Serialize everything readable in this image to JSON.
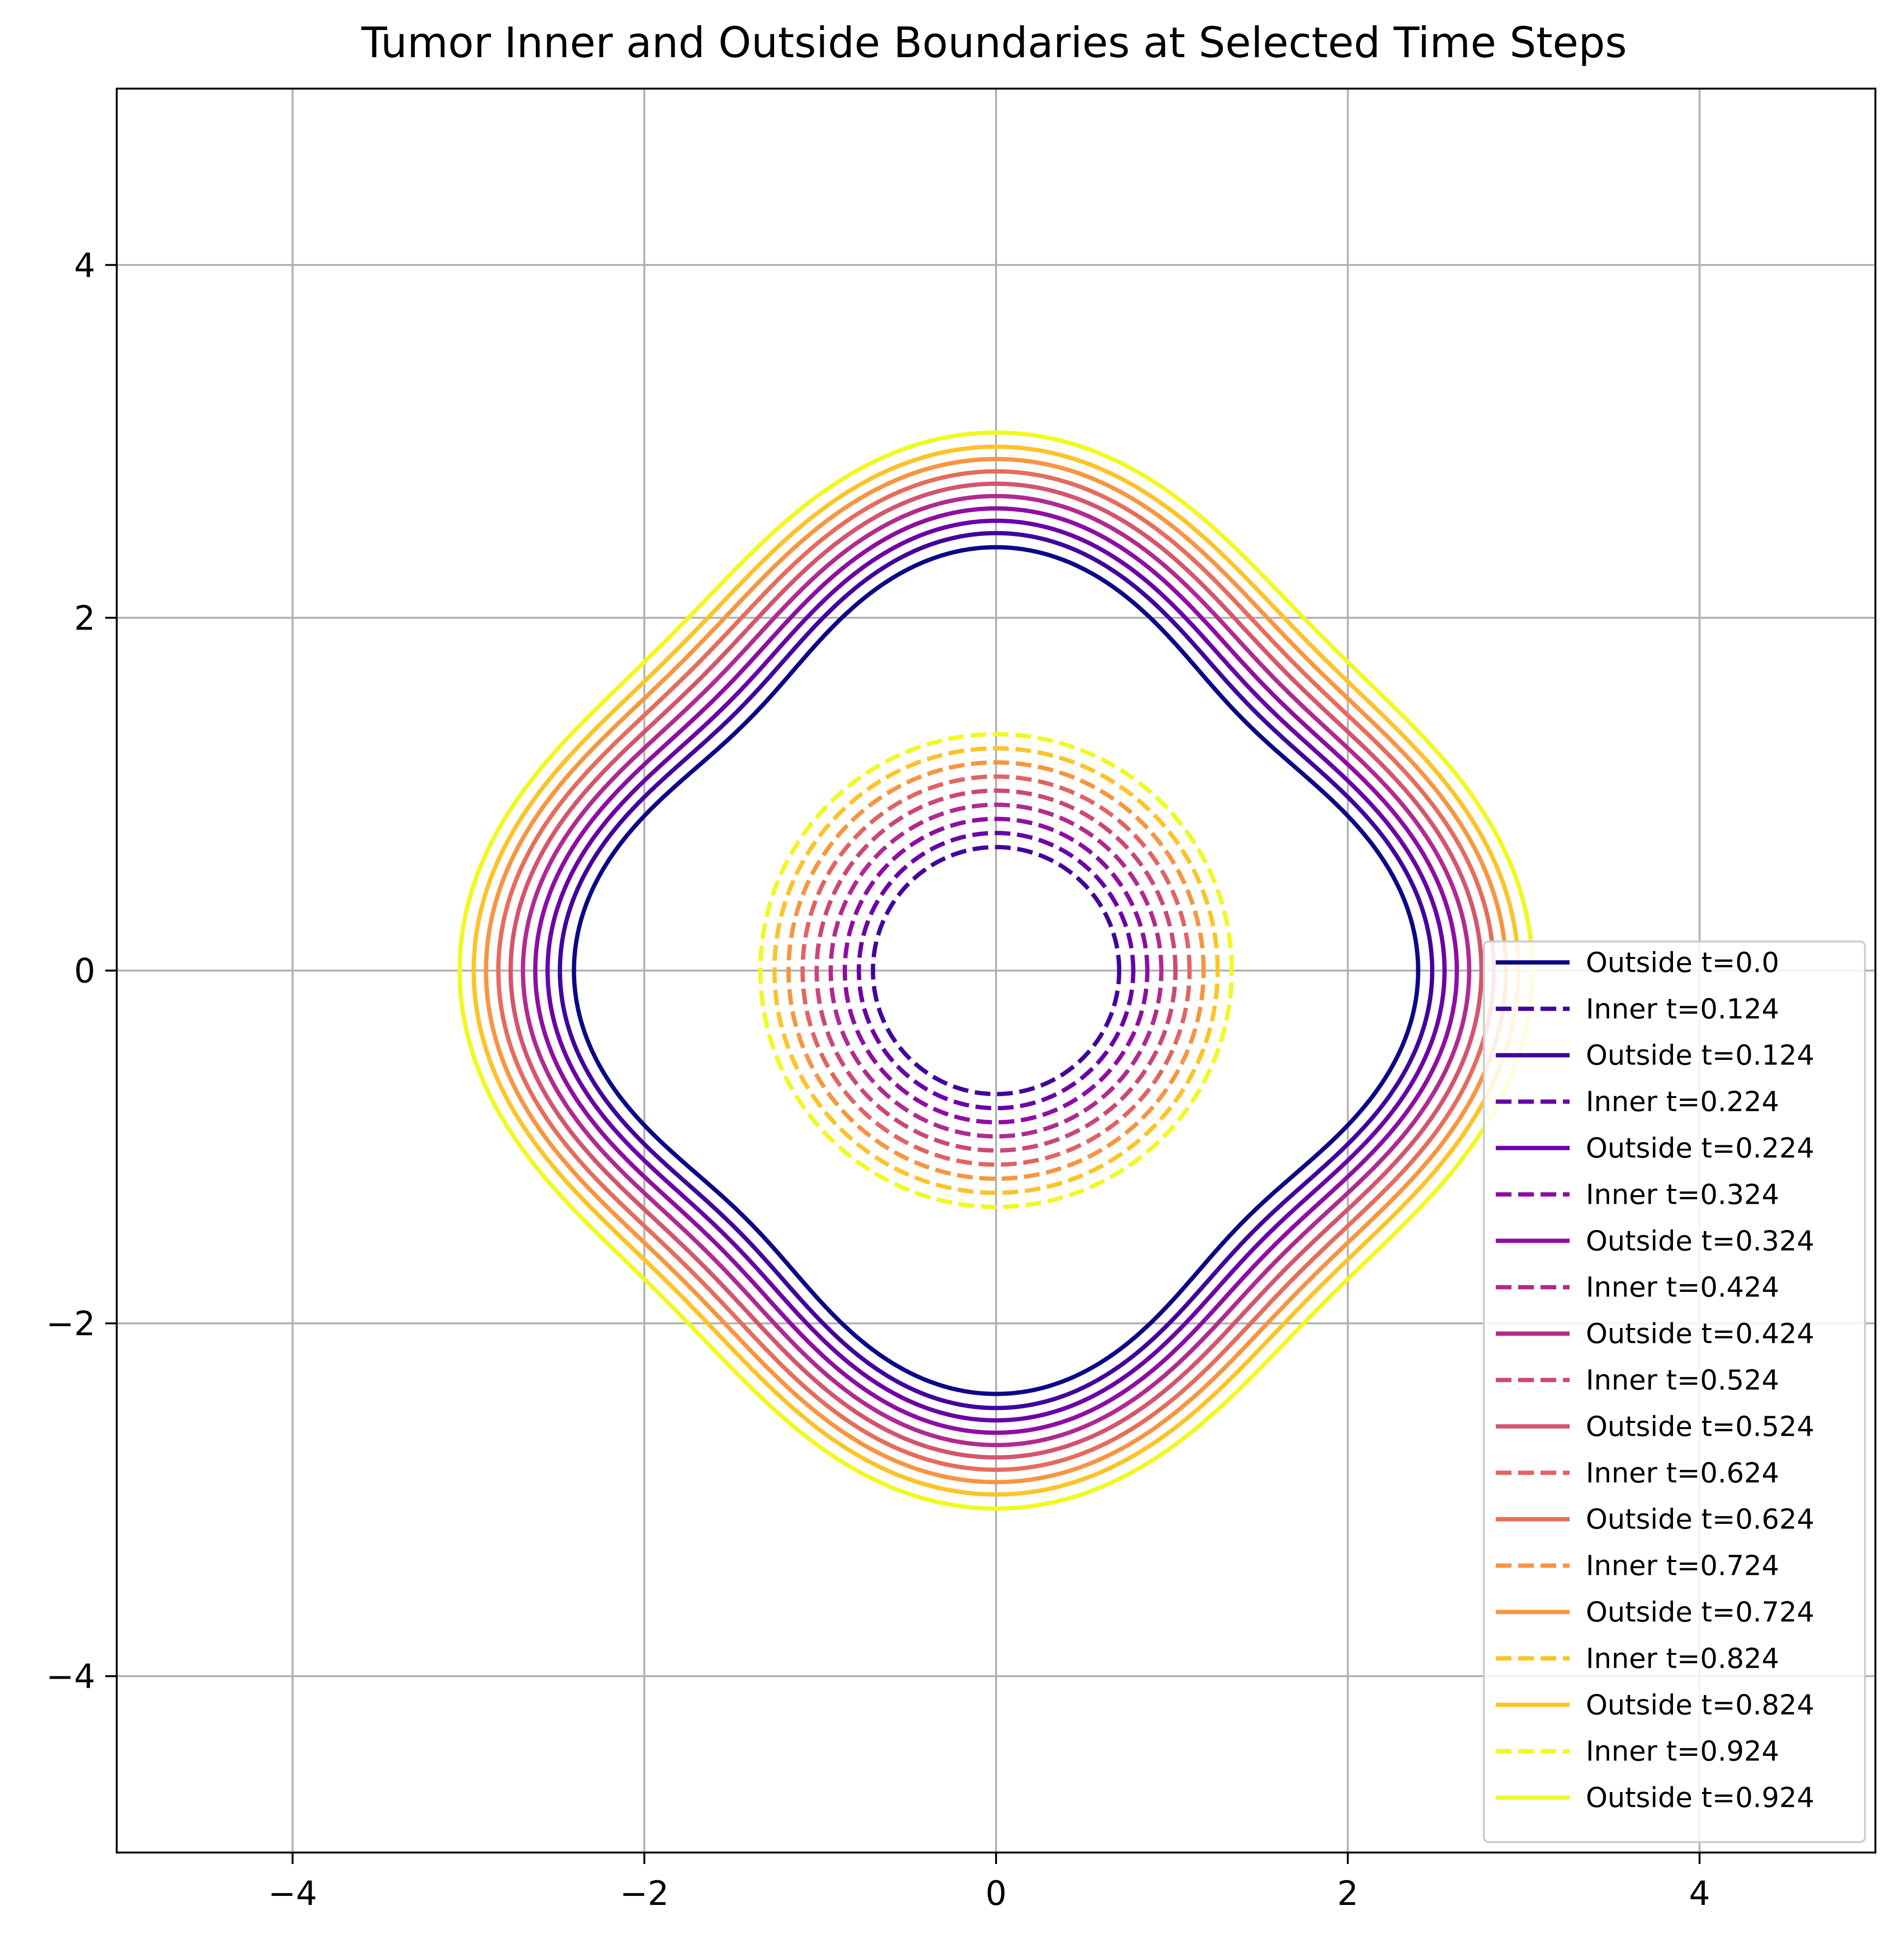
{
  "chart_data": {
    "type": "line",
    "title": "Tumor Inner and Outside Boundaries at Selected Time Steps",
    "xlabel": "",
    "ylabel": "",
    "xlim": [
      -5,
      5
    ],
    "ylim": [
      -5,
      5
    ],
    "grid": true,
    "aspect": "equal",
    "xticks": [
      -4,
      -2,
      0,
      2,
      4
    ],
    "yticks": [
      -4,
      -2,
      0,
      2,
      4
    ],
    "xtick_labels": [
      "−4",
      "−2",
      "0",
      "2",
      "4"
    ],
    "ytick_labels": [
      "−4",
      "−2",
      "0",
      "2",
      "4"
    ],
    "legend_position": "lower-right",
    "boundary_model": "outside: r(theta) = R + 0.2*cos(4*theta); inner: circle of radius R",
    "series": [
      {
        "name": "Outside t=0.0",
        "kind": "outside",
        "t": 0.0,
        "base_radius": 2.2,
        "amplitude": 0.2,
        "color": "#0d0887",
        "dash": "solid"
      },
      {
        "name": "Inner t=0.124",
        "kind": "inner",
        "t": 0.124,
        "radius": 0.7,
        "color": "#41049d",
        "dash": "dashed"
      },
      {
        "name": "Outside t=0.124",
        "kind": "outside",
        "t": 0.124,
        "base_radius": 2.28,
        "amplitude": 0.2,
        "color": "#41049d",
        "dash": "solid"
      },
      {
        "name": "Inner t=0.224",
        "kind": "inner",
        "t": 0.224,
        "radius": 0.78,
        "color": "#6a00a8",
        "dash": "dashed"
      },
      {
        "name": "Outside t=0.224",
        "kind": "outside",
        "t": 0.224,
        "base_radius": 2.35,
        "amplitude": 0.2,
        "color": "#6a00a8",
        "dash": "solid"
      },
      {
        "name": "Inner t=0.324",
        "kind": "inner",
        "t": 0.324,
        "radius": 0.86,
        "color": "#8f0da4",
        "dash": "dashed"
      },
      {
        "name": "Outside t=0.324",
        "kind": "outside",
        "t": 0.324,
        "base_radius": 2.42,
        "amplitude": 0.2,
        "color": "#8f0da4",
        "dash": "solid"
      },
      {
        "name": "Inner t=0.424",
        "kind": "inner",
        "t": 0.424,
        "radius": 0.94,
        "color": "#b12a90",
        "dash": "dashed"
      },
      {
        "name": "Outside t=0.424",
        "kind": "outside",
        "t": 0.424,
        "base_radius": 2.49,
        "amplitude": 0.2,
        "color": "#b12a90",
        "dash": "solid"
      },
      {
        "name": "Inner t=0.524",
        "kind": "inner",
        "t": 0.524,
        "radius": 1.02,
        "color": "#cc4778",
        "dash": "dashed"
      },
      {
        "name": "Outside t=0.524",
        "kind": "outside",
        "t": 0.524,
        "base_radius": 2.56,
        "amplitude": 0.2,
        "color": "#d5546e",
        "dash": "solid"
      },
      {
        "name": "Inner t=0.624",
        "kind": "inner",
        "t": 0.624,
        "radius": 1.1,
        "color": "#e16462",
        "dash": "dashed"
      },
      {
        "name": "Outside t=0.624",
        "kind": "outside",
        "t": 0.624,
        "base_radius": 2.63,
        "amplitude": 0.2,
        "color": "#e66c5c",
        "dash": "solid"
      },
      {
        "name": "Inner t=0.724",
        "kind": "inner",
        "t": 0.724,
        "radius": 1.18,
        "color": "#f89540",
        "dash": "dashed"
      },
      {
        "name": "Outside t=0.724",
        "kind": "outside",
        "t": 0.724,
        "base_radius": 2.7,
        "amplitude": 0.2,
        "color": "#f89540",
        "dash": "solid"
      },
      {
        "name": "Inner t=0.824",
        "kind": "inner",
        "t": 0.824,
        "radius": 1.26,
        "color": "#fdc328",
        "dash": "dashed"
      },
      {
        "name": "Outside t=0.824",
        "kind": "outside",
        "t": 0.824,
        "base_radius": 2.77,
        "amplitude": 0.2,
        "color": "#fdc328",
        "dash": "solid"
      },
      {
        "name": "Inner t=0.924",
        "kind": "inner",
        "t": 0.924,
        "radius": 1.34,
        "color": "#f0f921",
        "dash": "dashed"
      },
      {
        "name": "Outside t=0.924",
        "kind": "outside",
        "t": 0.924,
        "base_radius": 2.85,
        "amplitude": 0.2,
        "color": "#f0f921",
        "dash": "solid"
      }
    ]
  }
}
